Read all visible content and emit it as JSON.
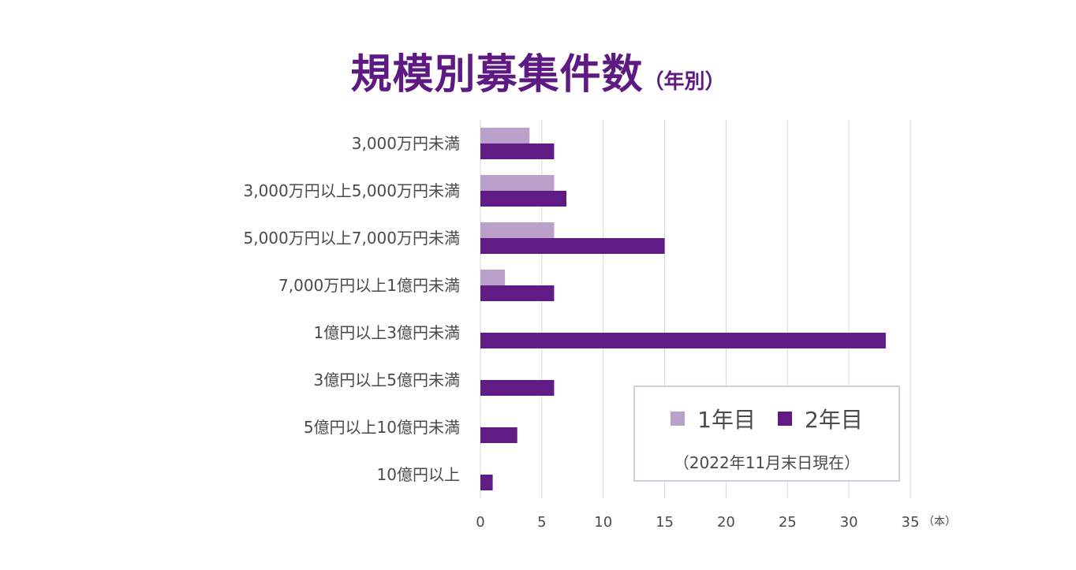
{
  "title": {
    "main": "規模別募集件数",
    "sub": "（年別）"
  },
  "colors": {
    "year1": "#bca0cc",
    "year2": "#611b85",
    "grid": "#d8d8d8",
    "title": "#5e1a82"
  },
  "legend": {
    "year1_label": "1年目",
    "year2_label": "2年目",
    "note": "（2022年11月末日現在）"
  },
  "chart_data": {
    "type": "bar",
    "orientation": "horizontal",
    "categories": [
      "3,000万円未満",
      "3,000万円以上5,000万円未満",
      "5,000万円以上7,000万円未満",
      "7,000万円以上1億円未満",
      "1億円以上3億円未満",
      "3億円以上5億円未満",
      "5億円以上10億円未満",
      "10億円以上"
    ],
    "series": [
      {
        "name": "1年目",
        "values": [
          4,
          6,
          6,
          2,
          0,
          0,
          0,
          0
        ]
      },
      {
        "name": "2年目",
        "values": [
          6,
          7,
          15,
          6,
          33,
          6,
          3,
          1
        ]
      }
    ],
    "xlim": [
      0,
      35
    ],
    "xticks": [
      0,
      5,
      10,
      15,
      20,
      25,
      30,
      35
    ],
    "xunit": "（本）",
    "title": "規模別募集件数（年別）",
    "grid": true,
    "legend_position": "bottom-right"
  }
}
